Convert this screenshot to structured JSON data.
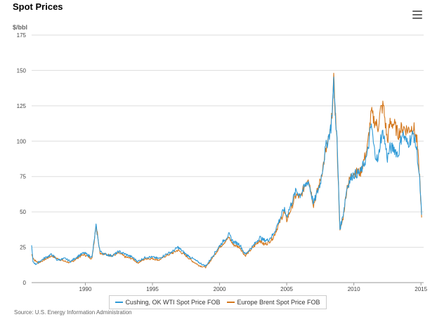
{
  "chart_data": {
    "type": "line",
    "title": "Spot Prices",
    "ylabel": "$/bbl",
    "ylim": [
      0,
      175
    ],
    "xlim": [
      1986,
      2015.2
    ],
    "yticks": [
      "0",
      "25",
      "50",
      "75",
      "100",
      "125",
      "150",
      "175"
    ],
    "xticks": [
      "1990",
      "1995",
      "2000",
      "2005",
      "2010",
      "2015"
    ],
    "grid": true,
    "legend": "bottom",
    "source": "Source: U.S. Energy Information Administration",
    "series": [
      {
        "name": "Cushing, OK WTI Spot Price FOB",
        "color": "#2f9ad7",
        "x": [
          1986.0,
          1986.1,
          1986.3,
          1986.6,
          1986.9,
          1987.5,
          1987.9,
          1988.5,
          1988.9,
          1989.5,
          1989.9,
          1990.5,
          1990.8,
          1990.9,
          1991.1,
          1991.5,
          1992.0,
          1992.5,
          1993.0,
          1993.5,
          1993.9,
          1994.5,
          1995.0,
          1995.5,
          1996.0,
          1996.5,
          1996.9,
          1997.5,
          1998.0,
          1998.5,
          1998.9,
          1999.0,
          1999.5,
          2000.0,
          2000.7,
          2001.0,
          2001.5,
          2001.9,
          2002.5,
          2003.0,
          2003.3,
          2003.6,
          2004.0,
          2004.8,
          2005.0,
          2005.7,
          2006.0,
          2006.6,
          2007.0,
          2007.5,
          2007.9,
          2008.3,
          2008.5,
          2008.75,
          2008.97,
          2009.2,
          2009.5,
          2009.9,
          2010.5,
          2011.0,
          2011.3,
          2011.5,
          2011.8,
          2012.0,
          2012.2,
          2012.5,
          2012.7,
          2013.0,
          2013.3,
          2013.6,
          2014.0,
          2014.45,
          2014.7,
          2014.9,
          2015.05
        ],
        "values": [
          26,
          15,
          13,
          15,
          17,
          20,
          16,
          17,
          15,
          19,
          21,
          18,
          40,
          33,
          22,
          20,
          19,
          22,
          20,
          18,
          15,
          18,
          18,
          17,
          20,
          22,
          25,
          20,
          17,
          14,
          12,
          12,
          19,
          26,
          34,
          29,
          27,
          20,
          26,
          32,
          30,
          30,
          34,
          52,
          47,
          65,
          62,
          72,
          56,
          70,
          95,
          110,
          140,
          100,
          38,
          48,
          68,
          76,
          78,
          90,
          112,
          95,
          85,
          102,
          106,
          88,
          95,
          95,
          90,
          106,
          98,
          105,
          93,
          72,
          48
        ]
      },
      {
        "name": "Europe Brent Spot Price FOB",
        "color": "#d4781e",
        "x": [
          1986.0,
          1986.2,
          1986.5,
          1986.9,
          1987.5,
          1987.9,
          1988.5,
          1988.9,
          1989.5,
          1989.9,
          1990.5,
          1990.8,
          1990.9,
          1991.1,
          1991.5,
          1992.0,
          1992.5,
          1993.0,
          1993.5,
          1993.9,
          1994.5,
          1995.0,
          1995.5,
          1996.0,
          1996.5,
          1996.9,
          1997.5,
          1998.0,
          1998.5,
          1998.9,
          1999.0,
          1999.5,
          2000.0,
          2000.7,
          2001.0,
          2001.5,
          2001.9,
          2002.5,
          2003.0,
          2003.3,
          2003.6,
          2004.0,
          2004.8,
          2005.0,
          2005.7,
          2006.0,
          2006.6,
          2007.0,
          2007.5,
          2007.9,
          2008.3,
          2008.5,
          2008.75,
          2008.97,
          2009.2,
          2009.5,
          2009.9,
          2010.5,
          2011.0,
          2011.3,
          2011.5,
          2011.8,
          2012.0,
          2012.2,
          2012.5,
          2012.7,
          2013.0,
          2013.3,
          2013.6,
          2014.0,
          2014.45,
          2014.7,
          2014.9,
          2015.05
        ],
        "values": [
          20,
          16,
          14,
          16,
          19,
          17,
          15,
          14,
          18,
          20,
          17,
          41,
          35,
          21,
          20,
          19,
          21,
          18,
          17,
          14,
          17,
          17,
          16,
          19,
          21,
          23,
          19,
          15,
          12,
          11,
          11,
          18,
          25,
          32,
          27,
          25,
          19,
          25,
          30,
          27,
          28,
          32,
          50,
          44,
          62,
          60,
          75,
          55,
          72,
          92,
          108,
          142,
          98,
          36,
          46,
          68,
          78,
          78,
          95,
          120,
          115,
          110,
          122,
          125,
          100,
          113,
          112,
          105,
          110,
          108,
          110,
          100,
          75,
          46
        ]
      }
    ]
  }
}
